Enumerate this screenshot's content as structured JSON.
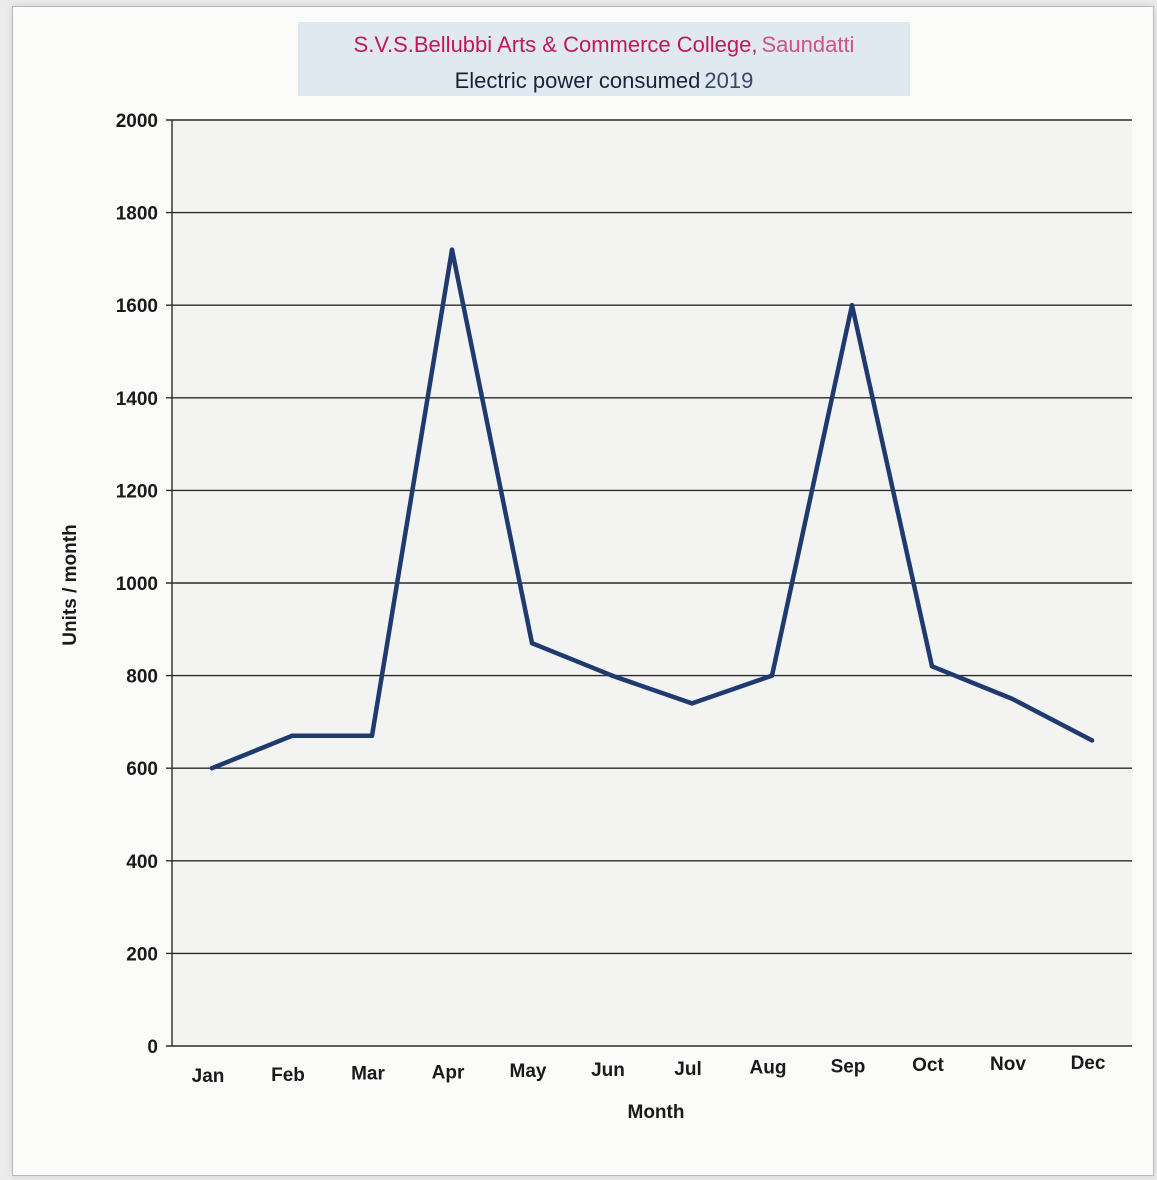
{
  "title_line1": "S.V.S.Bellubbi Arts & Commerce  College,",
  "title_line1_place": "Saundatti",
  "title_line2": "Electric power consumed",
  "title_line2_year": "2019",
  "colors": {
    "title_primary": "#c2185b",
    "title_place": "#d0528a",
    "title_text": "#1f1f3a",
    "title_year": "#35466b",
    "line": "#1f3a6e"
  },
  "chart_data": {
    "type": "line",
    "title": "S.V.S.Bellubbi Arts & Commerce College, Saundatti / Electric power consumed 2019",
    "xlabel": "Month",
    "ylabel": "Units  / month",
    "categories": [
      "Jan",
      "Feb",
      "Mar",
      "Apr",
      "May",
      "Jun",
      "Jul",
      "Aug",
      "Sep",
      "Oct",
      "Nov",
      "Dec"
    ],
    "series": [
      {
        "values": [
          600,
          670,
          670,
          1720,
          870,
          800,
          740,
          800,
          1600,
          820,
          750,
          660
        ]
      }
    ],
    "ylim": [
      0,
      2000
    ],
    "yticks": [
      0,
      200,
      400,
      600,
      800,
      1000,
      1200,
      1400,
      1600,
      1800,
      2000
    ],
    "grid": true,
    "legend": "none"
  }
}
